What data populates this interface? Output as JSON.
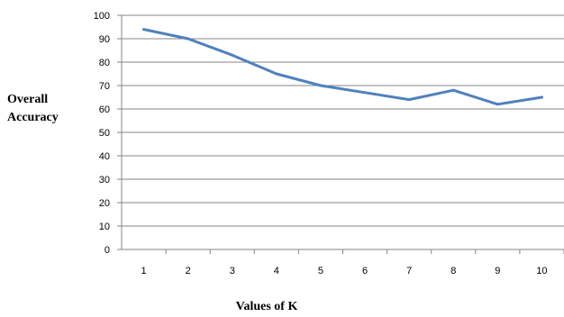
{
  "chart_data": {
    "type": "line",
    "title": "",
    "xlabel": "Values of K",
    "ylabel_lines": [
      "Overall",
      "Accuracy"
    ],
    "x": [
      1,
      2,
      3,
      4,
      5,
      6,
      7,
      8,
      9,
      10
    ],
    "series": [
      {
        "values": [
          94,
          90,
          83,
          75,
          70,
          67,
          64,
          68,
          62,
          65
        ],
        "color": "#4f81bd"
      }
    ],
    "ylim": [
      0,
      100
    ],
    "yticks": [
      0,
      10,
      20,
      30,
      40,
      50,
      60,
      70,
      80,
      90,
      100
    ],
    "grid": "horizontal",
    "legend": "none",
    "gridline_color": "#868686",
    "axis_color": "#868686"
  }
}
